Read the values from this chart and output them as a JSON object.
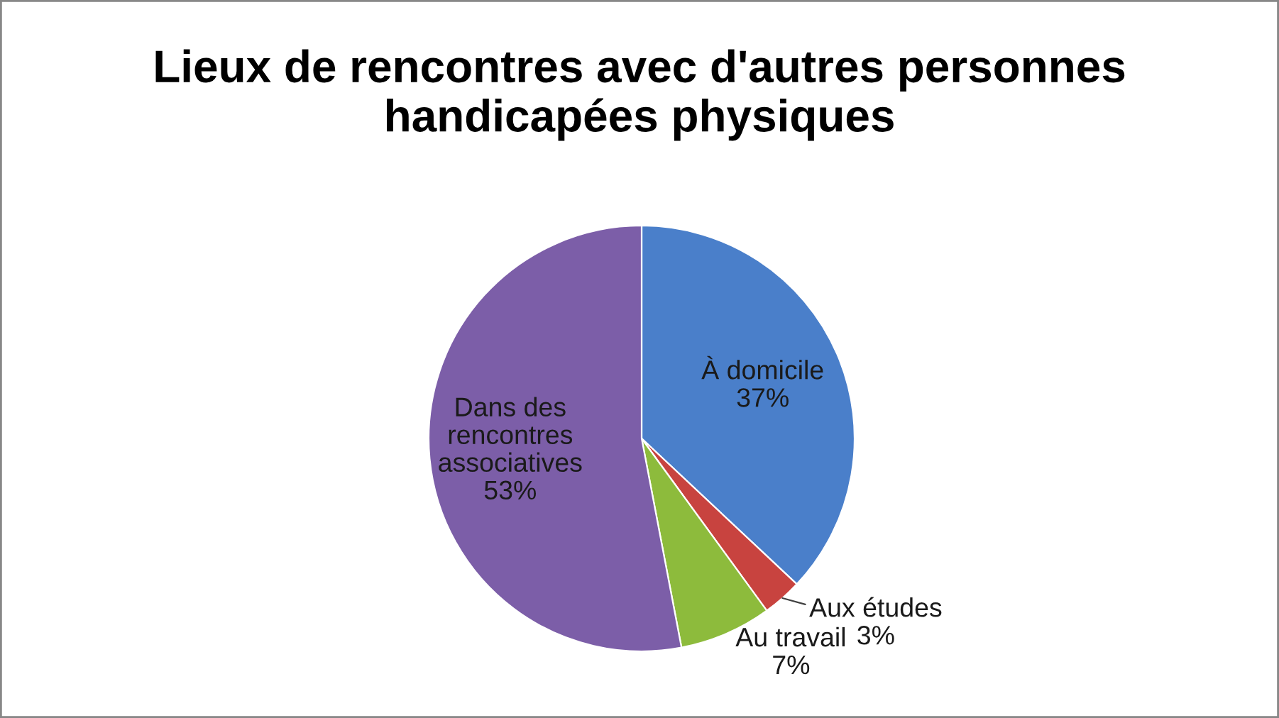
{
  "chart_data": {
    "type": "pie",
    "title": "Lieux de rencontres avec d'autres personnes\nhandicapées physiques",
    "categories": [
      "À domicile",
      "Aux études",
      "Au travail",
      "Dans des\nrencontres\nassociatives"
    ],
    "values": [
      37,
      3,
      7,
      53
    ],
    "colors": [
      "#4a7fca",
      "#c8433f",
      "#8dbb3c",
      "#7c5ea8"
    ],
    "value_labels": [
      "37%",
      "3%",
      "7%",
      "53%"
    ]
  }
}
